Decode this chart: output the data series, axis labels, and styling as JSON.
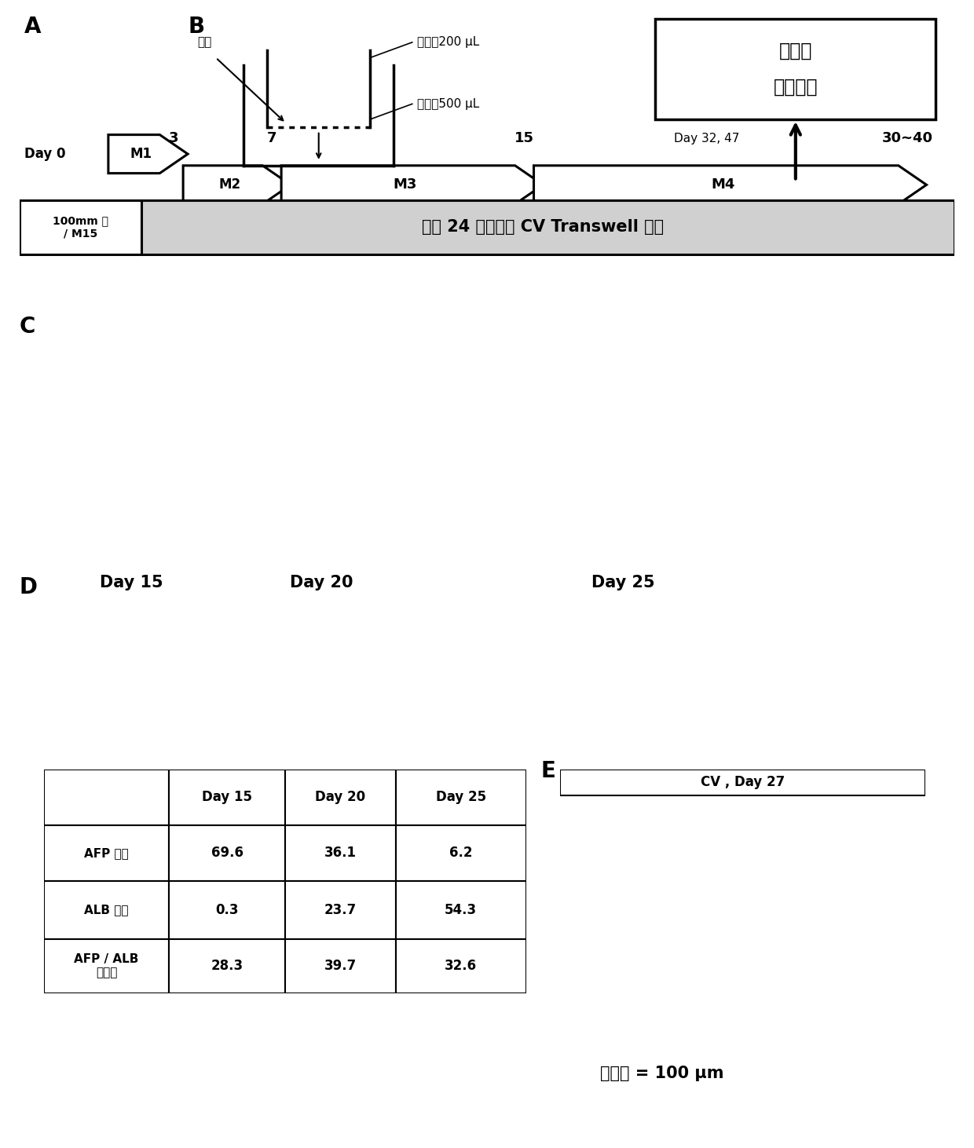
{
  "panel_A_label": "A",
  "panel_B_label": "B",
  "panel_C_label": "C",
  "panel_D_label": "D",
  "panel_E_label": "E",
  "dish_label": "100mm 盘\n/ M15",
  "transwell_label": "位于 24 孔板上的 CV Transwell 插件",
  "box_title_line1": "表达谱",
  "box_title_line2": "代谢活性",
  "day_label_box": "Day 32, 47",
  "cell_label": "细胞",
  "upper_label": "上侧：200 μL",
  "lower_label": "下侧：500 μL",
  "table_headers": [
    "",
    "Day 15",
    "Day 20",
    "Day 25"
  ],
  "table_rows": [
    [
      "AFP 阳性",
      "69.6",
      "36.1",
      "6.2"
    ],
    [
      "ALB 阳性",
      "0.3",
      "23.7",
      "54.3"
    ],
    [
      "AFP / ALB\n双阳性",
      "28.3",
      "39.7",
      "32.6"
    ]
  ],
  "day15_label": "Day 15",
  "day20_label": "Day 20",
  "day25_label": "Day 25",
  "cv_day27_label": "CV , Day 27",
  "scale_bar_label": "比例尺 = 100 μm",
  "bg_black": "#000000",
  "bg_white": "#ffffff"
}
